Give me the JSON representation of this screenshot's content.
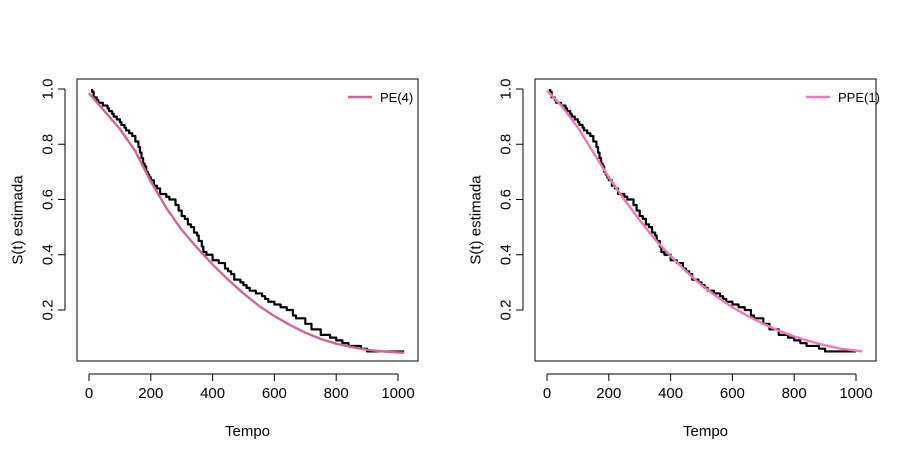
{
  "chart_data": [
    {
      "type": "line",
      "xlabel": "Tempo",
      "ylabel": "S(t) estimada",
      "xlim": [
        0,
        1050
      ],
      "ylim": [
        0.03,
        1.02
      ],
      "xticks": [
        0,
        200,
        400,
        600,
        800,
        1000
      ],
      "yticks": [
        0.2,
        0.4,
        0.6,
        0.8,
        1.0
      ],
      "xtick_labels": [
        "0",
        "200",
        "400",
        "600",
        "800",
        "1000"
      ],
      "ytick_labels": [
        "0.2",
        "0.4",
        "0.6",
        "0.8",
        "1.0"
      ],
      "legend_position": "top-right",
      "grid": false,
      "series": [
        {
          "style": "step",
          "color": "#000000",
          "x": [
            10,
            15,
            25,
            30,
            45,
            60,
            65,
            75,
            80,
            90,
            100,
            105,
            115,
            120,
            130,
            140,
            150,
            160,
            165,
            170,
            175,
            180,
            185,
            190,
            195,
            200,
            210,
            220,
            230,
            250,
            260,
            270,
            280,
            290,
            300,
            310,
            320,
            330,
            340,
            350,
            355,
            365,
            370,
            380,
            400,
            420,
            440,
            450,
            460,
            470,
            490,
            500,
            510,
            520,
            540,
            560,
            570,
            580,
            600,
            620,
            640,
            660,
            670,
            700,
            720,
            750,
            780,
            800,
            820,
            840,
            880,
            900,
            950,
            1020
          ],
          "y": [
            0.99,
            0.97,
            0.96,
            0.95,
            0.94,
            0.93,
            0.92,
            0.91,
            0.9,
            0.89,
            0.88,
            0.87,
            0.86,
            0.85,
            0.84,
            0.83,
            0.81,
            0.79,
            0.77,
            0.75,
            0.73,
            0.72,
            0.7,
            0.69,
            0.68,
            0.67,
            0.65,
            0.64,
            0.62,
            0.61,
            0.6,
            0.6,
            0.58,
            0.56,
            0.54,
            0.53,
            0.51,
            0.5,
            0.48,
            0.47,
            0.45,
            0.43,
            0.41,
            0.4,
            0.38,
            0.37,
            0.35,
            0.34,
            0.33,
            0.31,
            0.3,
            0.29,
            0.28,
            0.27,
            0.26,
            0.25,
            0.24,
            0.23,
            0.22,
            0.21,
            0.2,
            0.18,
            0.17,
            0.15,
            0.13,
            0.11,
            0.1,
            0.09,
            0.08,
            0.07,
            0.06,
            0.05,
            0.05,
            0.05
          ]
        },
        {
          "name": "PE(4)",
          "style": "smooth",
          "color": "#cc6699",
          "x": [
            0,
            50,
            100,
            150,
            200,
            250,
            300,
            350,
            400,
            450,
            500,
            550,
            600,
            650,
            700,
            750,
            800,
            850,
            900,
            950,
            1020
          ],
          "y": [
            0.985,
            0.92,
            0.855,
            0.775,
            0.665,
            0.57,
            0.49,
            0.425,
            0.365,
            0.31,
            0.26,
            0.215,
            0.178,
            0.146,
            0.118,
            0.095,
            0.078,
            0.066,
            0.056,
            0.05,
            0.045
          ]
        }
      ]
    },
    {
      "type": "line",
      "xlabel": "Tempo",
      "ylabel": "S(t) estimada",
      "xlim": [
        0,
        1050
      ],
      "ylim": [
        0.03,
        1.02
      ],
      "xticks": [
        0,
        200,
        400,
        600,
        800,
        1000
      ],
      "yticks": [
        0.2,
        0.4,
        0.6,
        0.8,
        1.0
      ],
      "xtick_labels": [
        "0",
        "200",
        "400",
        "600",
        "800",
        "1000"
      ],
      "ytick_labels": [
        "0.2",
        "0.4",
        "0.6",
        "0.8",
        "1.0"
      ],
      "legend_position": "top-right",
      "grid": false,
      "series": [
        {
          "style": "step",
          "color": "#000000",
          "x": [
            10,
            15,
            25,
            30,
            45,
            60,
            65,
            75,
            80,
            90,
            100,
            105,
            115,
            120,
            130,
            140,
            150,
            160,
            165,
            170,
            175,
            180,
            185,
            190,
            195,
            200,
            210,
            220,
            230,
            250,
            260,
            270,
            280,
            290,
            300,
            310,
            320,
            330,
            340,
            350,
            355,
            365,
            370,
            380,
            400,
            420,
            440,
            450,
            460,
            470,
            490,
            500,
            510,
            520,
            540,
            560,
            570,
            580,
            600,
            620,
            640,
            660,
            670,
            700,
            720,
            750,
            780,
            800,
            820,
            840,
            880,
            900,
            950,
            1000
          ],
          "y": [
            0.99,
            0.97,
            0.96,
            0.95,
            0.94,
            0.93,
            0.92,
            0.91,
            0.9,
            0.89,
            0.88,
            0.87,
            0.86,
            0.85,
            0.84,
            0.83,
            0.81,
            0.79,
            0.77,
            0.75,
            0.73,
            0.72,
            0.7,
            0.69,
            0.68,
            0.67,
            0.65,
            0.64,
            0.62,
            0.61,
            0.6,
            0.6,
            0.58,
            0.56,
            0.54,
            0.53,
            0.51,
            0.5,
            0.48,
            0.47,
            0.45,
            0.43,
            0.41,
            0.4,
            0.38,
            0.37,
            0.35,
            0.34,
            0.33,
            0.31,
            0.3,
            0.29,
            0.28,
            0.27,
            0.26,
            0.25,
            0.24,
            0.23,
            0.22,
            0.21,
            0.2,
            0.18,
            0.17,
            0.15,
            0.13,
            0.11,
            0.1,
            0.09,
            0.08,
            0.07,
            0.06,
            0.05,
            0.05,
            0.05
          ]
        },
        {
          "name": "PPE(1)",
          "style": "smooth",
          "color": "#ee77bb",
          "x": [
            0,
            50,
            100,
            150,
            200,
            250,
            300,
            350,
            400,
            450,
            500,
            550,
            600,
            650,
            700,
            750,
            800,
            850,
            900,
            950,
            1020
          ],
          "y": [
            0.995,
            0.935,
            0.86,
            0.77,
            0.68,
            0.6,
            0.525,
            0.455,
            0.395,
            0.34,
            0.29,
            0.248,
            0.21,
            0.178,
            0.15,
            0.125,
            0.104,
            0.087,
            0.072,
            0.06,
            0.05
          ]
        }
      ]
    }
  ]
}
